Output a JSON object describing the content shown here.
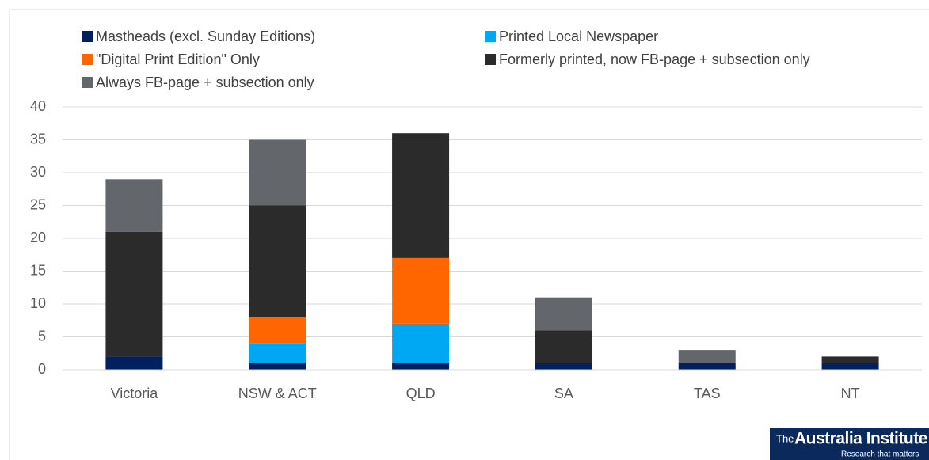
{
  "chart_data": {
    "type": "stacked_bar",
    "categories": [
      "Victoria",
      "NSW & ACT",
      "QLD",
      "SA",
      "TAS",
      "NT"
    ],
    "series": [
      {
        "name": "Mastheads (excl. Sunday Editions)",
        "color": "#002060",
        "values": [
          2,
          1,
          1,
          1,
          1,
          1
        ]
      },
      {
        "name": "Printed Local Newspaper",
        "color": "#00a8f3",
        "values": [
          0,
          3,
          6,
          0,
          0,
          0
        ]
      },
      {
        "name": "\"Digital Print Edition\" Only",
        "color": "#ff6600",
        "values": [
          0,
          4,
          10,
          0,
          0,
          0
        ]
      },
      {
        "name": "Formerly printed, now FB-page + subsection only",
        "color": "#2b2b2b",
        "values": [
          19,
          17,
          19,
          5,
          0,
          1
        ]
      },
      {
        "name": "Always FB-page + subsection only",
        "color": "#63666a",
        "values": [
          8,
          10,
          0,
          5,
          2,
          0
        ]
      }
    ],
    "ylim": [
      0,
      40
    ],
    "yticks": [
      0,
      5,
      10,
      15,
      20,
      25,
      30,
      35,
      40
    ],
    "grid": true,
    "logo": {
      "prefix": "The",
      "name": "Australia Institute",
      "tagline": "Research that matters"
    }
  }
}
